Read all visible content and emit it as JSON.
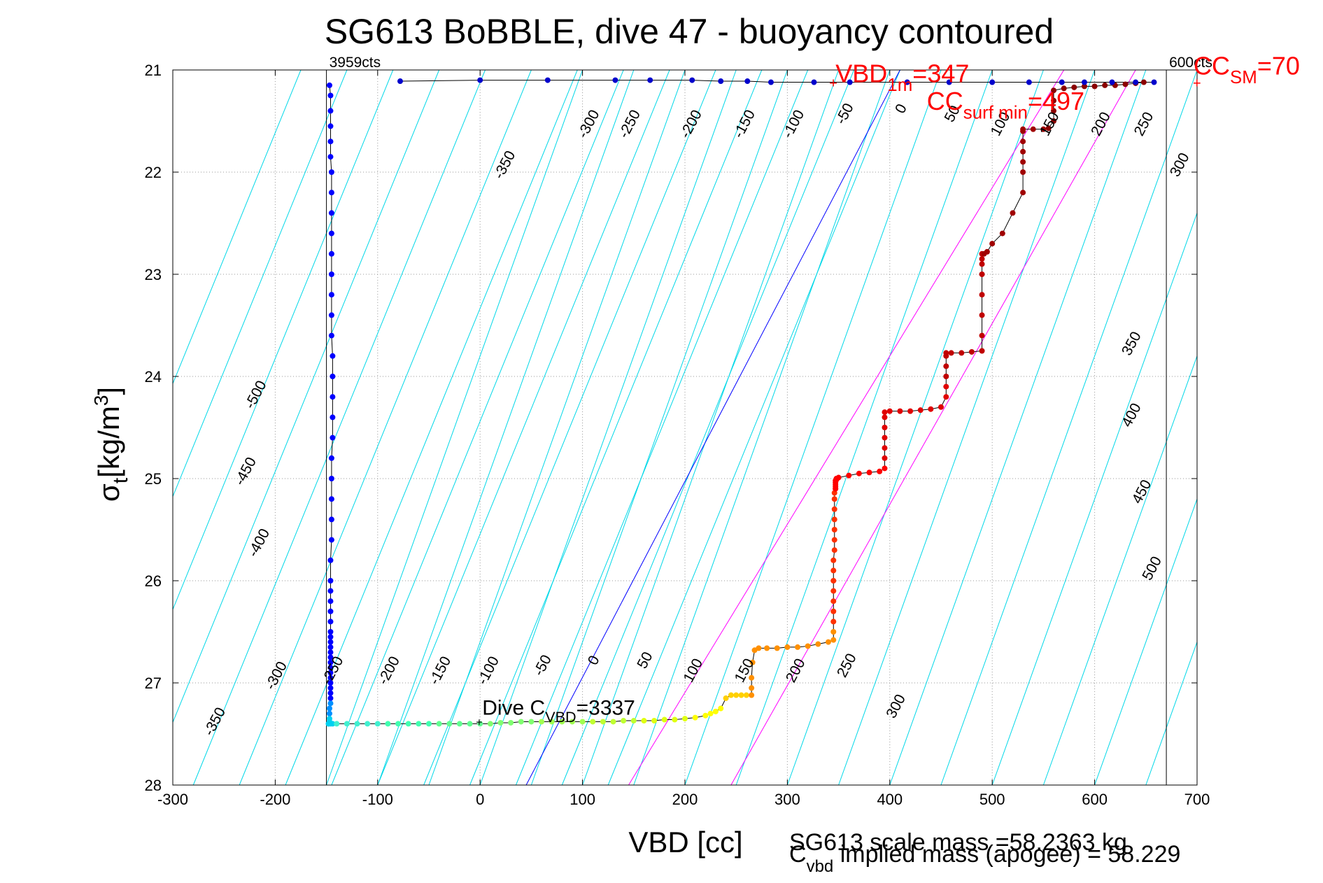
{
  "chart_data": {
    "type": "scatter",
    "title": "SG613 BoBBLE, dive 47 - buoyancy contoured",
    "xlabel": "VBD [cc]",
    "ylabel_main": "σ",
    "ylabel_sub": "t",
    "ylabel_units_pre": "[kg/m",
    "ylabel_units_sup": "3",
    "ylabel_units_post": "]",
    "xlim": [
      -300,
      700
    ],
    "ylim": [
      21,
      28
    ],
    "y_reversed": true,
    "grid": true,
    "x_ticks": [
      -300,
      -200,
      -100,
      0,
      100,
      200,
      300,
      400,
      500,
      600,
      700
    ],
    "y_ticks": [
      21,
      22,
      23,
      24,
      25,
      26,
      27,
      28
    ],
    "x_tick_labels": [
      "-300",
      "-200",
      "-100",
      "0",
      "100",
      "200",
      "300",
      "400",
      "500",
      "600",
      "700"
    ],
    "y_tick_labels": [
      "21",
      "22",
      "23",
      "24",
      "25",
      "26",
      "27",
      "28"
    ],
    "limit_lines": {
      "min_vbd": -150,
      "max_vbd": 670
    },
    "limit_labels": {
      "min_counts": "3959cts",
      "max_counts": "600cts"
    },
    "contours": {
      "top_group": {
        "x_offsets": [
          -350,
          -300,
          -250,
          -200,
          -150,
          -100,
          -50,
          0,
          50,
          100,
          150,
          200,
          250,
          300
        ],
        "x_at_sigma21": -145,
        "x_at_sigma28": -430
      },
      "bottom_group": {
        "x_offsets": [
          -500,
          -450,
          -400,
          -350,
          -300,
          -250,
          -200,
          -150,
          -100,
          -50,
          0,
          50,
          100,
          150,
          200,
          250,
          300,
          350,
          400,
          450,
          500
        ],
        "x_at_sigma21": 600,
        "x_at_sigma28": 350
      },
      "labels": [
        {
          "text": "-350",
          "x": 28,
          "y": 21.95
        },
        {
          "text": "-300",
          "x": 110,
          "y": 21.55
        },
        {
          "text": "-250",
          "x": 150,
          "y": 21.55
        },
        {
          "text": "-200",
          "x": 210,
          "y": 21.55
        },
        {
          "text": "-150",
          "x": 262,
          "y": 21.55
        },
        {
          "text": "-100",
          "x": 310,
          "y": 21.55
        },
        {
          "text": "-50",
          "x": 360,
          "y": 21.45
        },
        {
          "text": "0",
          "x": 415,
          "y": 21.4
        },
        {
          "text": "50",
          "x": 465,
          "y": 21.45
        },
        {
          "text": "100",
          "x": 512,
          "y": 21.55
        },
        {
          "text": "150",
          "x": 560,
          "y": 21.55
        },
        {
          "text": "200",
          "x": 610,
          "y": 21.55
        },
        {
          "text": "250",
          "x": 652,
          "y": 21.55
        },
        {
          "text": "300",
          "x": 687,
          "y": 21.95
        },
        {
          "text": "350",
          "x": 640,
          "y": 23.7
        },
        {
          "text": "400",
          "x": 640,
          "y": 24.4
        },
        {
          "text": "450",
          "x": 650,
          "y": 25.15
        },
        {
          "text": "500",
          "x": 660,
          "y": 25.9
        },
        {
          "text": "-500",
          "x": -215,
          "y": 24.2
        },
        {
          "text": "-450",
          "x": -225,
          "y": 24.95
        },
        {
          "text": "-400",
          "x": -212,
          "y": 25.65
        },
        {
          "text": "-350",
          "x": -255,
          "y": 27.4
        },
        {
          "text": "-300",
          "x": -195,
          "y": 26.95
        },
        {
          "text": "-250",
          "x": -140,
          "y": 26.9
        },
        {
          "text": "-200",
          "x": -85,
          "y": 26.9
        },
        {
          "text": "-150",
          "x": -35,
          "y": 26.9
        },
        {
          "text": "-100",
          "x": 12,
          "y": 26.9
        },
        {
          "text": "-50",
          "x": 65,
          "y": 26.85
        },
        {
          "text": "0",
          "x": 115,
          "y": 26.8
        },
        {
          "text": "50",
          "x": 165,
          "y": 26.8
        },
        {
          "text": "100",
          "x": 212,
          "y": 26.9
        },
        {
          "text": "150",
          "x": 262,
          "y": 26.9
        },
        {
          "text": "200",
          "x": 312,
          "y": 26.9
        },
        {
          "text": "250",
          "x": 362,
          "y": 26.85
        },
        {
          "text": "300",
          "x": 410,
          "y": 27.25
        }
      ]
    },
    "special_lines": [
      {
        "name": "",
        "color": "#0000ff",
        "x_at_sigma21": 410,
        "x_at_sigma28": 45
      },
      {
        "name": "",
        "color": "#ff00ff",
        "x_at_sigma21": 570,
        "x_at_sigma28": 145
      },
      {
        "name": "",
        "color": "#ff00ff",
        "x_at_sigma21": 640,
        "x_at_sigma28": 245
      }
    ],
    "descent_points": {
      "x": [
        -147,
        -146,
        -146,
        -146,
        -146,
        -146,
        -145,
        -145,
        -145,
        -145,
        -145,
        -145,
        -145,
        -145,
        -145,
        -144,
        -144,
        -144,
        -144,
        -144,
        -145,
        -145,
        -145,
        -145,
        -145,
        -146,
        -146,
        -146,
        -146,
        -146,
        -146,
        -146,
        -146,
        -146,
        -146,
        -146,
        -146,
        -146,
        -146,
        -146,
        -146,
        -146,
        -146,
        -146,
        -146,
        -146,
        -147,
        -147,
        -147,
        -147,
        -148,
        -148,
        -146,
        -144
      ],
      "y": [
        21.15,
        21.25,
        21.4,
        21.55,
        21.7,
        21.85,
        22.0,
        22.2,
        22.4,
        22.6,
        22.8,
        23.0,
        23.2,
        23.4,
        23.6,
        23.8,
        24.0,
        24.2,
        24.4,
        24.6,
        24.8,
        25.0,
        25.2,
        25.4,
        25.6,
        25.8,
        26.0,
        26.1,
        26.2,
        26.3,
        26.4,
        26.5,
        26.55,
        26.6,
        26.65,
        26.7,
        26.75,
        26.8,
        26.85,
        26.9,
        26.95,
        27.0,
        27.05,
        27.1,
        27.15,
        27.2,
        27.25,
        27.3,
        27.35,
        27.38,
        27.4,
        27.4,
        27.4,
        27.4
      ],
      "color": "#0000ff"
    },
    "apogee_points": {
      "x": [
        -140,
        -130,
        -120,
        -110,
        -100,
        -90,
        -80,
        -70,
        -60,
        -50,
        -40,
        -30,
        -20,
        -10,
        0,
        10,
        20,
        30,
        40,
        50,
        60,
        70,
        80,
        90,
        100,
        110,
        120,
        130,
        140,
        150,
        160,
        170,
        180,
        190,
        200,
        210,
        220,
        225,
        230,
        235,
        240,
        245,
        250,
        255,
        260
      ],
      "y": [
        27.4,
        27.4,
        27.4,
        27.4,
        27.4,
        27.4,
        27.4,
        27.4,
        27.4,
        27.4,
        27.4,
        27.4,
        27.4,
        27.4,
        27.4,
        27.4,
        27.39,
        27.39,
        27.38,
        27.38,
        27.38,
        27.38,
        27.38,
        27.38,
        27.38,
        27.38,
        27.38,
        27.38,
        27.37,
        27.37,
        27.37,
        27.37,
        27.36,
        27.36,
        27.35,
        27.34,
        27.32,
        27.3,
        27.28,
        27.25,
        27.15,
        27.12,
        27.12,
        27.12,
        27.12
      ]
    },
    "ascent_points": {
      "x": [
        265,
        265,
        265,
        266,
        268,
        272,
        280,
        290,
        300,
        310,
        320,
        330,
        340,
        345,
        345,
        345,
        345,
        345,
        345,
        345,
        345,
        345,
        346,
        346,
        346,
        346,
        346,
        346,
        346,
        347,
        347,
        347,
        347,
        347,
        347,
        348,
        348,
        348,
        350,
        360,
        370,
        380,
        390,
        395,
        395,
        395,
        395,
        395,
        395,
        395,
        400,
        410,
        420,
        430,
        440,
        450,
        455,
        455,
        455,
        455,
        455,
        455,
        460,
        470,
        480,
        490,
        490,
        490,
        490,
        490,
        490,
        490,
        490,
        492,
        495,
        500,
        510,
        520,
        530,
        530,
        530,
        530,
        530,
        530,
        530,
        540,
        550,
        555,
        560,
        560,
        560,
        560,
        570,
        580,
        590,
        600,
        610,
        620,
        630,
        640,
        648
      ],
      "y": [
        27.12,
        27.05,
        26.95,
        26.8,
        26.68,
        26.66,
        26.66,
        26.66,
        26.65,
        26.65,
        26.64,
        26.62,
        26.6,
        26.58,
        26.5,
        26.4,
        26.3,
        26.2,
        26.1,
        26.0,
        25.9,
        25.8,
        25.7,
        25.6,
        25.5,
        25.4,
        25.3,
        25.2,
        25.14,
        25.1,
        25.1,
        25.08,
        25.06,
        25.04,
        25.02,
        25.01,
        25.0,
        25.0,
        24.99,
        24.97,
        24.95,
        24.94,
        24.93,
        24.9,
        24.8,
        24.7,
        24.6,
        24.5,
        24.4,
        24.35,
        24.34,
        24.34,
        24.34,
        24.33,
        24.32,
        24.3,
        24.2,
        24.1,
        24.0,
        23.9,
        23.8,
        23.77,
        23.77,
        23.77,
        23.76,
        23.75,
        23.6,
        23.4,
        23.2,
        23.0,
        22.9,
        22.85,
        22.8,
        22.8,
        22.78,
        22.7,
        22.6,
        22.4,
        22.2,
        22.0,
        21.9,
        21.8,
        21.7,
        21.6,
        21.58,
        21.58,
        21.58,
        21.57,
        21.5,
        21.4,
        21.3,
        21.2,
        21.18,
        21.17,
        21.16,
        21.16,
        21.15,
        21.15,
        21.14,
        21.13,
        21.12
      ]
    },
    "surface_points": {
      "x": [
        -78,
        0,
        66,
        132,
        166,
        207,
        235,
        261,
        284,
        326,
        361,
        417,
        458,
        500,
        536,
        568,
        590,
        617,
        640,
        658
      ],
      "y": [
        21.11,
        21.1,
        21.1,
        21.1,
        21.1,
        21.1,
        21.11,
        21.11,
        21.12,
        21.12,
        21.12,
        21.12,
        21.12,
        21.12,
        21.12,
        21.12,
        21.12,
        21.12,
        21.12,
        21.12
      ],
      "color": "#0000cc"
    },
    "gradient_colors": [
      "#8b0000",
      "#d00000",
      "#ff0000",
      "#ff6000",
      "#ffc000",
      "#e0ff20",
      "#80ff80",
      "#40ffc0"
    ],
    "annotations": {
      "vbd_1m": {
        "main": "VBD",
        "sub": "1m",
        "value": "=347",
        "x": 345,
        "y": 21.12
      },
      "cc_surf_min": {
        "main": "CC",
        "sub": "surf min",
        "value": "=497",
        "x": 497,
        "y": 21.15
      },
      "cc_sm": {
        "main": "CC",
        "sub": "SM",
        "value": "=70",
        "x": 700,
        "y": 21.12
      },
      "dive_cvbd": {
        "main": "Dive C",
        "sub": "VBD",
        "value": "=3337",
        "x": 0,
        "y": 27.38
      }
    },
    "notes": {
      "scale_mass": "SG613 scale mass =58.2363 kg",
      "cvbd_main": "C",
      "cvbd_sub": "vbd",
      "implied_mass": " implied mass (apogee) = 58.229"
    }
  }
}
